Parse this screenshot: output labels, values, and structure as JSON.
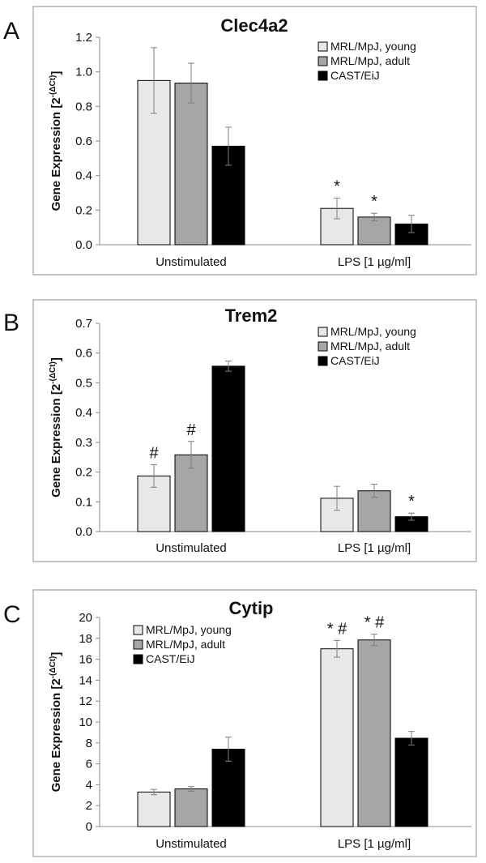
{
  "chart_data": [
    {
      "type": "bar",
      "panel_letter": "A",
      "title": "Clec4a2",
      "ylabel": "Gene Expression [2",
      "ylabel_sup": "-(ΔCt)",
      "ylabel_close": "]",
      "xlabel": "",
      "ylim": [
        0,
        1.2
      ],
      "ytick_labels": [
        "0.0",
        "0.2",
        "0.4",
        "0.6",
        "0.8",
        "1.0",
        "1.2"
      ],
      "ytick_values": [
        0,
        0.2,
        0.4,
        0.6,
        0.8,
        1.0,
        1.2
      ],
      "categories": [
        "Unstimulated",
        "LPS [1 µg/ml]"
      ],
      "series": [
        {
          "name": "MRL/MpJ, young",
          "color": "#e8e8e8",
          "values": [
            0.95,
            0.21
          ],
          "errors": [
            0.19,
            0.06
          ],
          "annotations": [
            "",
            "*"
          ]
        },
        {
          "name": "MRL/MpJ, adult",
          "color": "#a6a6a6",
          "values": [
            0.935,
            0.16
          ],
          "errors": [
            0.115,
            0.022
          ],
          "annotations": [
            "",
            "*"
          ]
        },
        {
          "name": "CAST/EiJ",
          "color": "#000000",
          "values": [
            0.57,
            0.12
          ],
          "errors": [
            0.11,
            0.05
          ],
          "annotations": [
            "",
            ""
          ]
        }
      ],
      "legend_position": "top-right",
      "grid": false
    },
    {
      "type": "bar",
      "panel_letter": "B",
      "title": "Trem2",
      "ylabel": "Gene Expression [2",
      "ylabel_sup": "-(ΔCt)",
      "ylabel_close": "]",
      "xlabel": "",
      "ylim": [
        0,
        0.7
      ],
      "ytick_labels": [
        "0.0",
        "0.1",
        "0.2",
        "0.3",
        "0.4",
        "0.5",
        "0.6",
        "0.7"
      ],
      "ytick_values": [
        0,
        0.1,
        0.2,
        0.3,
        0.4,
        0.5,
        0.6,
        0.7
      ],
      "categories": [
        "Unstimulated",
        "LPS [1 µg/ml]"
      ],
      "series": [
        {
          "name": "MRL/MpJ, young",
          "color": "#e8e8e8",
          "values": [
            0.187,
            0.112
          ],
          "errors": [
            0.038,
            0.04
          ],
          "annotations": [
            "#",
            ""
          ]
        },
        {
          "name": "MRL/MpJ, adult",
          "color": "#a6a6a6",
          "values": [
            0.258,
            0.137
          ],
          "errors": [
            0.045,
            0.022
          ],
          "annotations": [
            "#",
            ""
          ]
        },
        {
          "name": "CAST/EiJ",
          "color": "#000000",
          "values": [
            0.556,
            0.05
          ],
          "errors": [
            0.017,
            0.012
          ],
          "annotations": [
            "",
            "*"
          ]
        }
      ],
      "legend_position": "top-right",
      "grid": false
    },
    {
      "type": "bar",
      "panel_letter": "C",
      "title": "Cytip",
      "ylabel": "Gene Expression [2",
      "ylabel_sup": "-(ΔCt)",
      "ylabel_close": "]",
      "xlabel": "",
      "ylim": [
        0,
        20
      ],
      "ytick_labels": [
        "0",
        "2",
        "4",
        "6",
        "8",
        "10",
        "12",
        "14",
        "16",
        "18",
        "20"
      ],
      "ytick_values": [
        0,
        2,
        4,
        6,
        8,
        10,
        12,
        14,
        16,
        18,
        20
      ],
      "categories": [
        "Unstimulated",
        "LPS [1 µg/ml]"
      ],
      "series": [
        {
          "name": "MRL/MpJ, young",
          "color": "#e8e8e8",
          "values": [
            3.3,
            17.0
          ],
          "errors": [
            0.25,
            0.8
          ],
          "annotations": [
            "",
            "* #"
          ]
        },
        {
          "name": "MRL/MpJ, adult",
          "color": "#a6a6a6",
          "values": [
            3.6,
            17.85
          ],
          "errors": [
            0.22,
            0.55
          ],
          "annotations": [
            "",
            "* #"
          ]
        },
        {
          "name": "CAST/EiJ",
          "color": "#000000",
          "values": [
            7.4,
            8.45
          ],
          "errors": [
            1.15,
            0.65
          ],
          "annotations": [
            "",
            ""
          ]
        }
      ],
      "legend_position": "top-left",
      "grid": false
    }
  ]
}
